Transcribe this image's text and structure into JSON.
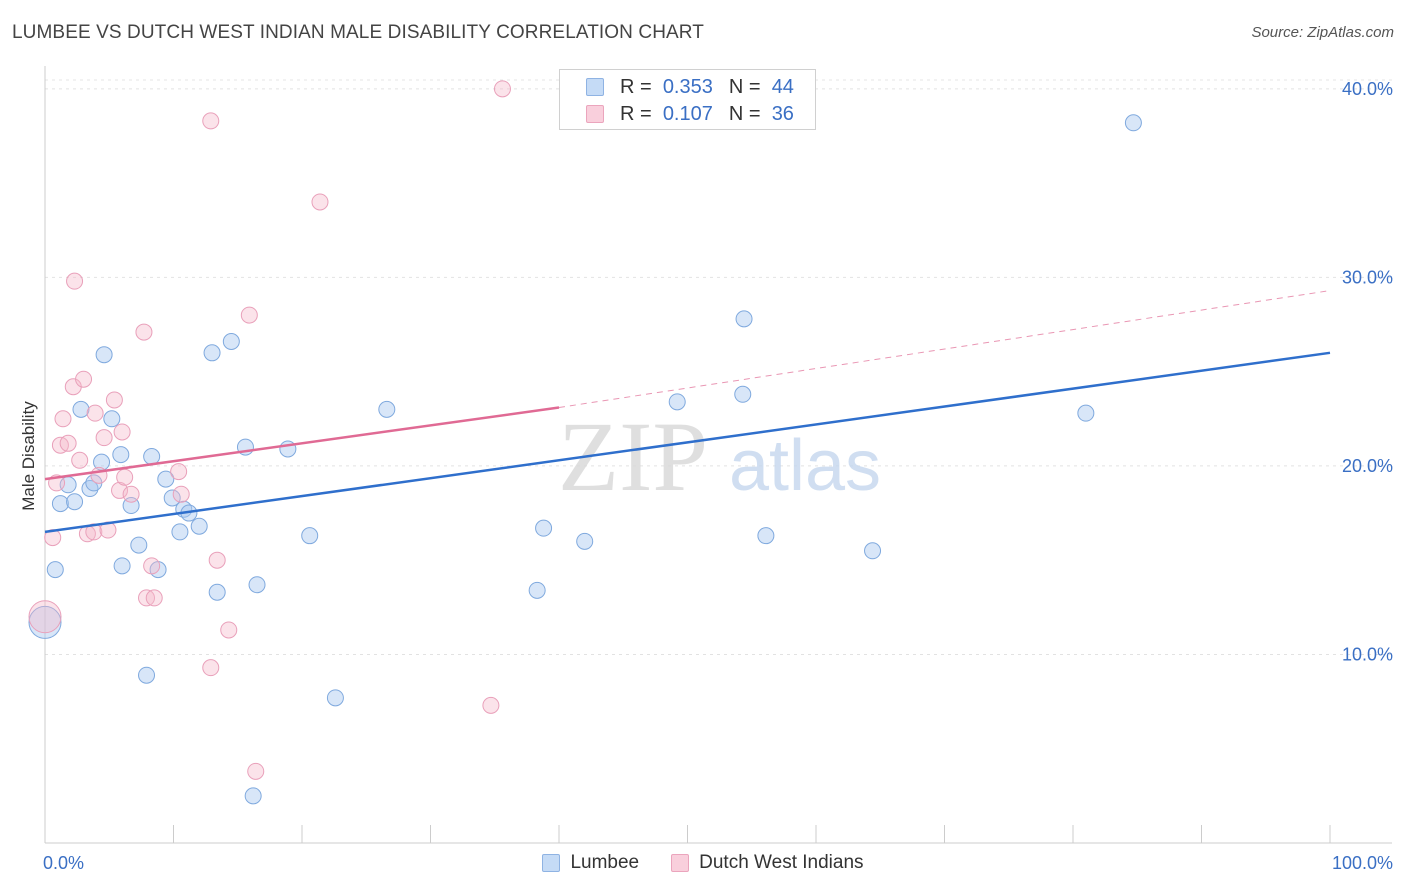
{
  "header": {
    "title": "LUMBEE VS DUTCH WEST INDIAN MALE DISABILITY CORRELATION CHART",
    "source": "Source: ZipAtlas.com"
  },
  "watermark": {
    "zip": "ZIP",
    "atlas": "atlas"
  },
  "legend": {
    "rows": [
      {
        "r_label": "R =",
        "r_value": "0.353",
        "n_label": "N =",
        "n_value": "44",
        "color": "#a9c8f0"
      },
      {
        "r_label": "R =",
        "r_value": "0.107",
        "n_label": "N =",
        "n_value": "36",
        "color": "#f5b8cb"
      }
    ]
  },
  "bottom_legend": [
    "Lumbee",
    "Dutch West Indians"
  ],
  "chart_data": {
    "type": "scatter",
    "title": "LUMBEE VS DUTCH WEST INDIAN MALE DISABILITY CORRELATION CHART",
    "xlabel": "",
    "ylabel": "Male Disability",
    "xlim": [
      0,
      100
    ],
    "ylim": [
      0,
      41
    ],
    "x_tick_labels": [
      "0.0%",
      "100.0%"
    ],
    "y_ticks": [
      10,
      20,
      30,
      40
    ],
    "y_tick_labels": [
      "10.0%",
      "20.0%",
      "30.0%",
      "40.0%"
    ],
    "grid": true,
    "legend_position": "top-center",
    "series": [
      {
        "name": "Lumbee",
        "color": "#a9c8f0",
        "line_color": "#2f6fcc",
        "trend": {
          "x": [
            0,
            100
          ],
          "y": [
            16.5,
            26.0
          ]
        },
        "points": [
          [
            0.0,
            11.7
          ],
          [
            0.8,
            14.5
          ],
          [
            1.2,
            18.0
          ],
          [
            1.8,
            19.0
          ],
          [
            2.3,
            18.1
          ],
          [
            2.8,
            23.0
          ],
          [
            3.5,
            18.8
          ],
          [
            3.8,
            19.1
          ],
          [
            4.4,
            20.2
          ],
          [
            4.6,
            25.9
          ],
          [
            5.2,
            22.5
          ],
          [
            5.9,
            20.6
          ],
          [
            6.0,
            14.7
          ],
          [
            6.7,
            17.9
          ],
          [
            7.3,
            15.8
          ],
          [
            7.9,
            8.9
          ],
          [
            8.3,
            20.5
          ],
          [
            8.8,
            14.5
          ],
          [
            9.4,
            19.3
          ],
          [
            9.9,
            18.3
          ],
          [
            10.5,
            16.5
          ],
          [
            10.8,
            17.7
          ],
          [
            11.2,
            17.5
          ],
          [
            12.0,
            16.8
          ],
          [
            13.0,
            26.0
          ],
          [
            13.4,
            13.3
          ],
          [
            14.5,
            26.6
          ],
          [
            15.6,
            21.0
          ],
          [
            16.2,
            2.5
          ],
          [
            16.5,
            13.7
          ],
          [
            18.9,
            20.9
          ],
          [
            20.6,
            16.3
          ],
          [
            22.6,
            7.7
          ],
          [
            26.6,
            23.0
          ],
          [
            38.3,
            13.4
          ],
          [
            38.8,
            16.7
          ],
          [
            42.0,
            16.0
          ],
          [
            49.2,
            23.4
          ],
          [
            54.3,
            23.8
          ],
          [
            54.4,
            27.8
          ],
          [
            56.1,
            16.3
          ],
          [
            64.4,
            15.5
          ],
          [
            81.0,
            22.8
          ],
          [
            84.7,
            38.2
          ]
        ]
      },
      {
        "name": "Dutch West Indians",
        "color": "#f5b8cb",
        "line_color": "#e06a94",
        "trend": {
          "x": [
            0,
            40
          ],
          "y": [
            19.3,
            23.1
          ]
        },
        "trend_extended": {
          "x": [
            40,
            100
          ],
          "y": [
            23.1,
            29.3
          ]
        },
        "points": [
          [
            0.0,
            12.0
          ],
          [
            0.6,
            16.2
          ],
          [
            0.9,
            19.1
          ],
          [
            1.2,
            21.1
          ],
          [
            1.4,
            22.5
          ],
          [
            1.8,
            21.2
          ],
          [
            2.2,
            24.2
          ],
          [
            2.3,
            29.8
          ],
          [
            2.7,
            20.3
          ],
          [
            3.0,
            24.6
          ],
          [
            3.3,
            16.4
          ],
          [
            3.8,
            16.5
          ],
          [
            3.9,
            22.8
          ],
          [
            4.2,
            19.5
          ],
          [
            4.6,
            21.5
          ],
          [
            4.9,
            16.6
          ],
          [
            5.4,
            23.5
          ],
          [
            5.8,
            18.7
          ],
          [
            6.0,
            21.8
          ],
          [
            6.2,
            19.4
          ],
          [
            6.7,
            18.5
          ],
          [
            7.7,
            27.1
          ],
          [
            7.9,
            13.0
          ],
          [
            8.3,
            14.7
          ],
          [
            8.5,
            13.0
          ],
          [
            10.4,
            19.7
          ],
          [
            10.6,
            18.5
          ],
          [
            12.9,
            9.3
          ],
          [
            12.9,
            38.3
          ],
          [
            13.4,
            15.0
          ],
          [
            14.3,
            11.3
          ],
          [
            16.4,
            3.8
          ],
          [
            15.9,
            28.0
          ],
          [
            21.4,
            34.0
          ],
          [
            34.7,
            7.3
          ],
          [
            35.6,
            40.0
          ]
        ]
      }
    ]
  }
}
